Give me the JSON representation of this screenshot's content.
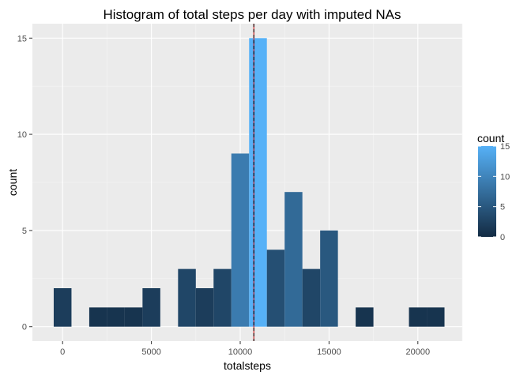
{
  "chart_data": {
    "type": "bar",
    "title": "Histogram of total steps per day with imputed NAs",
    "xlabel": "totalsteps",
    "ylabel": "count",
    "xlim": [
      -1700,
      22500
    ],
    "ylim": [
      -0.75,
      15.75
    ],
    "x_ticks": [
      0,
      5000,
      10000,
      15000,
      20000
    ],
    "x_tick_labels": [
      "0",
      "5000",
      "10000",
      "15000",
      "20000"
    ],
    "y_ticks": [
      0,
      5,
      10,
      15
    ],
    "y_tick_labels": [
      "0",
      "5",
      "10",
      "15"
    ],
    "bin_width": 1000,
    "bin_centers": [
      0,
      1000,
      2000,
      3000,
      4000,
      5000,
      6000,
      7000,
      8000,
      9000,
      10000,
      11000,
      12000,
      13000,
      14000,
      15000,
      16000,
      17000,
      18000,
      19000,
      20000,
      21000
    ],
    "values": [
      2,
      0,
      1,
      1,
      1,
      2,
      0,
      3,
      2,
      3,
      9,
      15,
      4,
      7,
      3,
      5,
      0,
      1,
      0,
      0,
      1,
      1
    ],
    "mean_line": 10766,
    "median_line": 10766,
    "grid": true,
    "legend": {
      "title": "count",
      "position": "right",
      "breaks": [
        0,
        5,
        10,
        15
      ],
      "labels": [
        "0",
        "5",
        "10",
        "15"
      ],
      "low_color": "#132b43",
      "high_color": "#56b1f7"
    },
    "colors": {
      "panel_bg": "#ebebeb",
      "grid_major": "#ffffff",
      "mean_line": "#cc0000",
      "median_line": "#000000"
    }
  }
}
